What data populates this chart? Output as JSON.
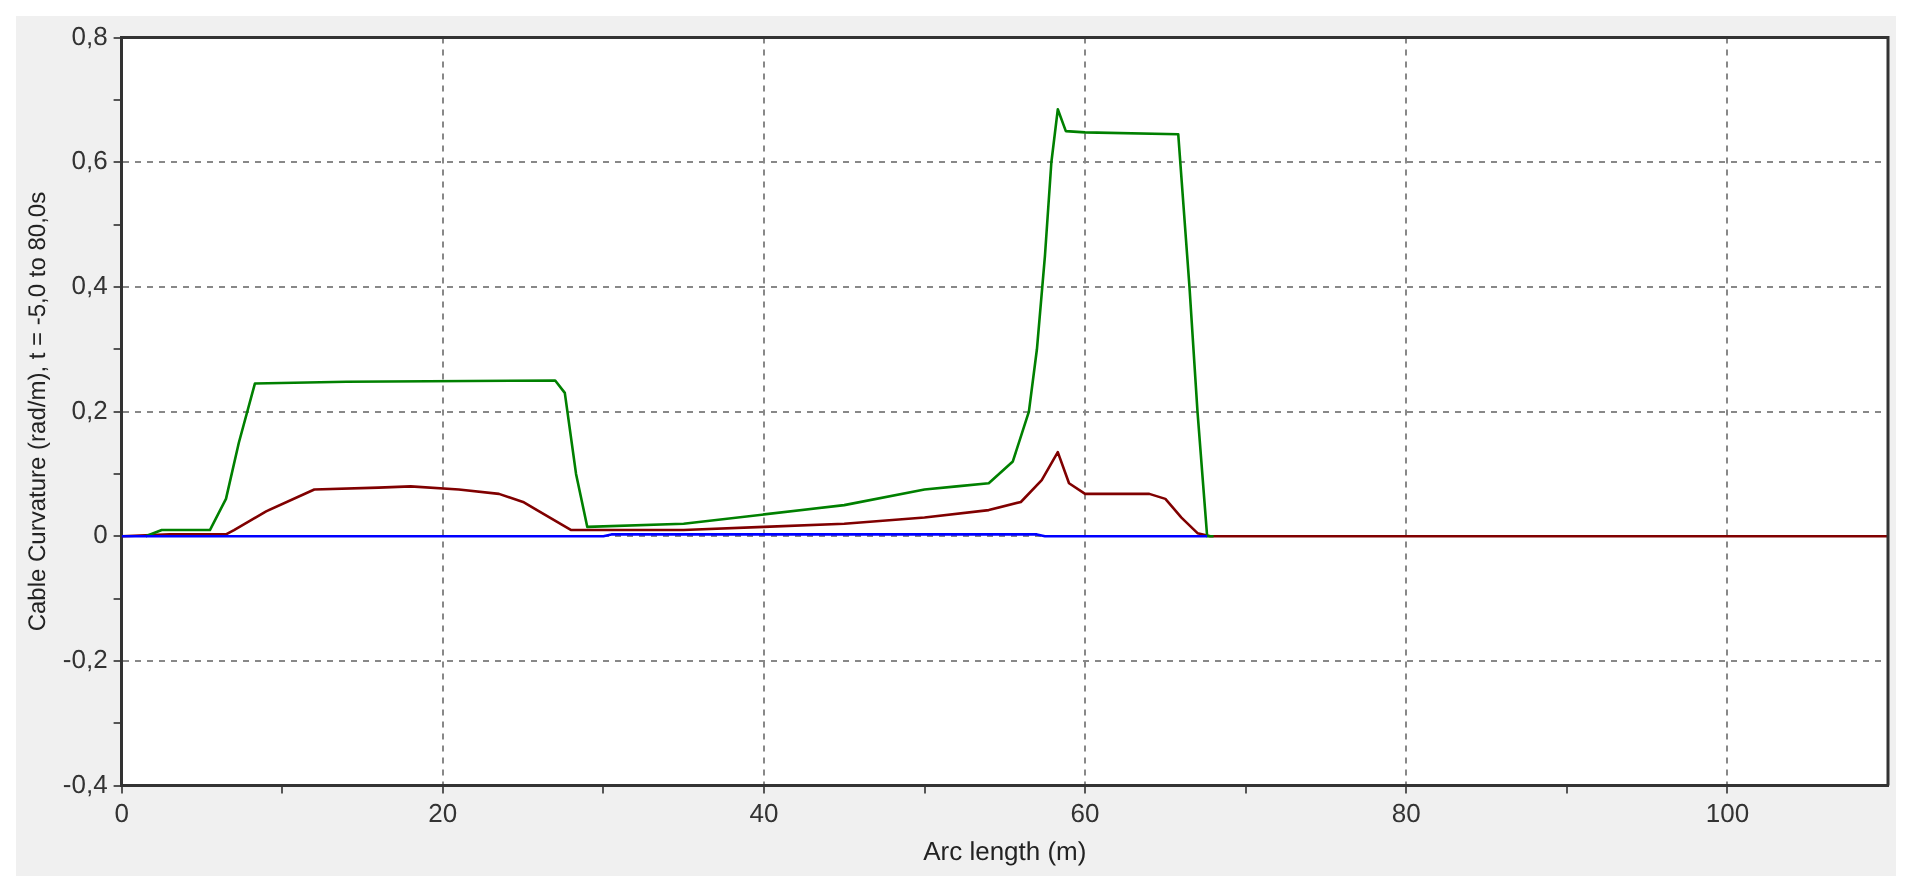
{
  "chart_data": {
    "type": "line",
    "xlabel": "Arc length (m)",
    "ylabel": "Cable Curvature (rad/m), t = -5,0 to 80,0s",
    "xlim": [
      0,
      110
    ],
    "xticks": [
      0,
      {
        "value": 10,
        "label": null
      },
      20,
      {
        "value": 30,
        "label": null
      },
      40,
      {
        "value": 50,
        "label": null
      },
      60,
      {
        "value": 70,
        "label": null
      },
      80,
      {
        "value": 90,
        "label": null
      },
      100
    ],
    "ylim": [
      -0.4,
      0.8
    ],
    "yticks": [
      {
        "value": -0.4,
        "label": "-0,4"
      },
      {
        "value": -0.3,
        "label": null
      },
      {
        "value": -0.2,
        "label": "-0,2"
      },
      {
        "value": -0.1,
        "label": null
      },
      {
        "value": 0,
        "label": "0"
      },
      {
        "value": 0.1,
        "label": null
      },
      {
        "value": 0.2,
        "label": "0,2"
      },
      {
        "value": 0.3,
        "label": null
      },
      {
        "value": 0.4,
        "label": "0,4"
      },
      {
        "value": 0.5,
        "label": null
      },
      {
        "value": 0.6,
        "label": "0,6"
      },
      {
        "value": 0.7,
        "label": null
      },
      {
        "value": 0.8,
        "label": "0,8"
      }
    ],
    "grid": true,
    "legend": false,
    "marker": "none",
    "line_style": "solid",
    "series": [
      {
        "color": "#0000ff",
        "x": [
          0,
          30,
          30.5,
          57,
          57.5,
          67.6
        ],
        "values": [
          0,
          0,
          0.003,
          0.003,
          0,
          0
        ]
      },
      {
        "color": "#008000",
        "x": [
          1.5,
          2.5,
          5.5,
          6.5,
          7.3,
          8.3,
          14,
          27,
          27.6,
          28.3,
          29,
          35,
          45,
          50,
          52,
          54,
          55.5,
          56.5,
          57,
          57.5,
          57.9,
          58.3,
          58.8,
          60,
          65.8,
          66.5,
          67,
          67.6,
          68
        ],
        "values": [
          0,
          0.01,
          0.01,
          0.06,
          0.15,
          0.245,
          0.248,
          0.25,
          0.23,
          0.1,
          0.015,
          0.02,
          0.05,
          0.075,
          0.08,
          0.085,
          0.12,
          0.2,
          0.3,
          0.45,
          0.6,
          0.685,
          0.65,
          0.648,
          0.645,
          0.4,
          0.2,
          0,
          0
        ]
      },
      {
        "color": "#800000",
        "x": [
          0,
          3,
          6.5,
          7,
          9,
          12,
          16,
          18,
          21,
          23.5,
          25,
          28,
          35,
          40,
          45,
          50,
          54,
          56,
          57.3,
          58.3,
          59,
          60,
          64,
          65,
          66,
          67,
          67.8,
          110
        ],
        "values": [
          0,
          0.003,
          0.003,
          0.01,
          0.04,
          0.075,
          0.078,
          0.08,
          0.075,
          0.068,
          0.055,
          0.01,
          0.01,
          0.015,
          0.02,
          0.03,
          0.042,
          0.055,
          0.09,
          0.135,
          0.085,
          0.068,
          0.068,
          0.06,
          0.03,
          0.005,
          0,
          0
        ]
      }
    ]
  }
}
